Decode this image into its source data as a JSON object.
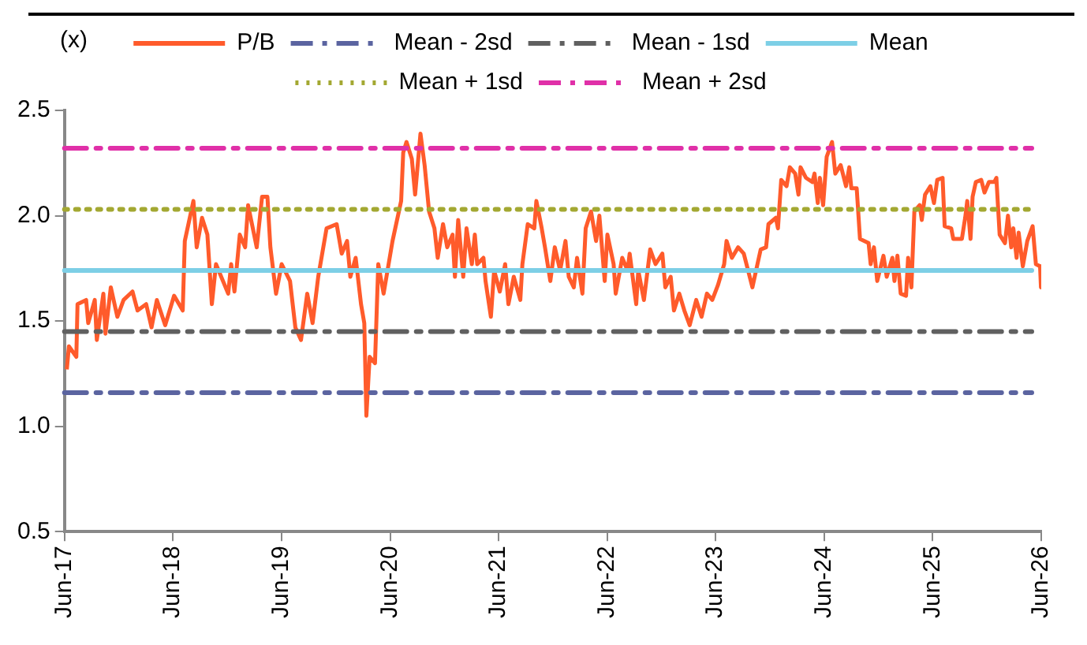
{
  "chart_data": {
    "type": "line",
    "ylabel": "(x)",
    "legend": "top",
    "grid": false,
    "marker": "none",
    "line_style": "solid",
    "xlim": [
      "2017-06-30",
      "2026-06-30"
    ],
    "xticks": [
      {
        "value": "2017-06-30",
        "label": "Jun-17"
      },
      {
        "value": "2018-06-30",
        "label": "Jun-18"
      },
      {
        "value": "2019-06-30",
        "label": "Jun-19"
      },
      {
        "value": "2020-06-30",
        "label": "Jun-20"
      },
      {
        "value": "2021-06-30",
        "label": "Jun-21"
      },
      {
        "value": "2022-06-30",
        "label": "Jun-22"
      },
      {
        "value": "2023-06-30",
        "label": "Jun-23"
      },
      {
        "value": "2024-06-30",
        "label": "Jun-24"
      },
      {
        "value": "2025-06-30",
        "label": "Jun-25"
      },
      {
        "value": "2026-06-30",
        "label": "Jun-26"
      }
    ],
    "ylim": [
      0.5,
      2.5
    ],
    "yticks": [
      0.5,
      {
        "value": 1,
        "label": "1.0"
      },
      1.5,
      {
        "value": 2,
        "label": "2.0"
      },
      2.5
    ],
    "x": [
      "2017-07-08",
      "2017-07-15",
      "2017-08-09",
      "2017-08-13",
      "2017-09-11",
      "2017-09-18",
      "2017-10-10",
      "2017-10-17",
      "2017-11-08",
      "2017-11-15",
      "2017-12-03",
      "2017-12-25",
      "2018-01-15",
      "2018-02-14",
      "2018-03-03",
      "2018-04-01",
      "2018-04-19",
      "2018-05-07",
      "2018-06-04",
      "2018-07-04",
      "2018-08-02",
      "2018-08-09",
      "2018-09-07",
      "2018-09-18",
      "2018-10-06",
      "2018-10-24",
      "2018-11-08",
      "2018-11-22",
      "2019-01-02",
      "2019-01-12",
      "2019-01-23",
      "2019-02-10",
      "2019-02-28",
      "2019-03-10",
      "2019-04-08",
      "2019-04-26",
      "2019-05-14",
      "2019-05-24",
      "2019-06-12",
      "2019-07-01",
      "2019-07-29",
      "2019-08-16",
      "2019-09-04",
      "2019-09-25",
      "2019-10-13",
      "2019-11-01",
      "2019-11-29",
      "2020-01-02",
      "2020-01-19",
      "2020-02-06",
      "2020-02-17",
      "2020-03-06",
      "2020-03-24",
      "2020-04-04",
      "2020-04-11",
      "2020-04-22",
      "2020-05-10",
      "2020-05-21",
      "2020-06-08",
      "2020-07-08",
      "2020-08-06",
      "2020-08-13",
      "2020-08-24",
      "2020-09-11",
      "2020-09-22",
      "2020-10-10",
      "2020-10-24",
      "2020-11-08",
      "2020-11-26",
      "2020-12-07",
      "2020-12-25",
      "2021-01-08",
      "2021-01-26",
      "2021-02-03",
      "2021-02-14",
      "2021-03-03",
      "2021-03-14",
      "2021-04-01",
      "2021-04-11",
      "2021-04-19",
      "2021-05-10",
      "2021-05-17",
      "2021-06-04",
      "2021-06-15",
      "2021-07-04",
      "2021-07-22",
      "2021-08-02",
      "2021-08-20",
      "2021-09-11",
      "2021-09-18",
      "2021-10-06",
      "2021-10-28",
      "2021-11-04",
      "2021-11-22",
      "2021-12-03",
      "2021-12-21",
      "2022-01-05",
      "2022-01-23",
      "2022-02-10",
      "2022-02-21",
      "2022-03-10",
      "2022-03-21",
      "2022-04-08",
      "2022-04-19",
      "2022-05-07",
      "2022-05-24",
      "2022-06-04",
      "2022-06-22",
      "2022-07-01",
      "2022-07-22",
      "2022-07-29",
      "2022-08-20",
      "2022-09-07",
      "2022-09-14",
      "2022-10-06",
      "2022-10-13",
      "2022-11-01",
      "2022-11-22",
      "2022-12-10",
      "2023-01-02",
      "2023-01-12",
      "2023-01-30",
      "2023-02-10",
      "2023-02-28",
      "2023-03-17",
      "2023-04-04",
      "2023-04-26",
      "2023-05-14",
      "2023-06-01",
      "2023-06-19",
      "2023-07-08",
      "2023-07-29",
      "2023-08-06",
      "2023-08-24",
      "2023-09-14",
      "2023-10-03",
      "2023-11-01",
      "2023-11-18",
      "2023-11-29",
      "2023-12-17",
      "2023-12-25",
      "2024-01-19",
      "2024-01-26",
      "2024-02-06",
      "2024-02-24",
      "2024-03-06",
      "2024-03-24",
      "2024-04-04",
      "2024-04-11",
      "2024-04-29",
      "2024-05-21",
      "2024-05-28",
      "2024-06-08",
      "2024-06-15",
      "2024-06-26",
      "2024-07-08",
      "2024-07-26",
      "2024-08-06",
      "2024-08-24",
      "2024-09-11",
      "2024-09-22",
      "2024-09-29",
      "2024-10-17",
      "2024-10-28",
      "2024-11-26",
      "2024-12-03",
      "2024-12-14",
      "2024-12-25",
      "2025-01-15",
      "2025-01-26",
      "2025-02-14",
      "2025-02-21",
      "2025-03-03",
      "2025-03-14",
      "2025-04-01",
      "2025-04-08",
      "2025-04-19",
      "2025-04-29",
      "2025-05-17",
      "2025-05-24",
      "2025-06-04",
      "2025-06-22",
      "2025-07-04",
      "2025-07-15",
      "2025-08-02",
      "2025-08-09",
      "2025-08-31",
      "2025-09-07",
      "2025-10-06",
      "2025-10-17",
      "2025-10-24",
      "2025-11-04",
      "2025-11-11",
      "2025-11-22",
      "2025-12-10",
      "2025-12-21",
      "2026-01-05",
      "2026-01-23",
      "2026-01-30",
      "2026-02-10",
      "2026-02-28",
      "2026-03-10",
      "2026-03-21",
      "2026-03-28",
      "2026-04-08",
      "2026-04-15",
      "2026-04-29",
      "2026-05-14",
      "2026-06-01",
      "2026-06-12",
      "2026-06-26",
      "2026-06-29"
    ],
    "series": [
      {
        "name": "P/B",
        "color": "#ff5b2b",
        "values": [
          1.27,
          1.38,
          1.33,
          1.58,
          1.6,
          1.49,
          1.6,
          1.41,
          1.63,
          1.44,
          1.66,
          1.52,
          1.6,
          1.64,
          1.55,
          1.58,
          1.47,
          1.6,
          1.48,
          1.62,
          1.55,
          1.88,
          2.07,
          1.85,
          1.99,
          1.91,
          1.58,
          1.77,
          1.63,
          1.77,
          1.64,
          1.91,
          1.85,
          2.05,
          1.85,
          2.09,
          2.09,
          1.85,
          1.63,
          1.77,
          1.69,
          1.47,
          1.41,
          1.63,
          1.49,
          1.71,
          1.94,
          1.96,
          1.82,
          1.88,
          1.71,
          1.8,
          1.58,
          1.49,
          1.05,
          1.33,
          1.3,
          1.77,
          1.63,
          1.88,
          2.07,
          2.3,
          2.35,
          2.27,
          2.1,
          2.39,
          2.24,
          2.02,
          1.94,
          1.8,
          1.96,
          1.85,
          1.91,
          1.71,
          1.98,
          1.71,
          1.94,
          1.77,
          1.91,
          1.77,
          1.8,
          1.69,
          1.52,
          1.74,
          1.64,
          1.77,
          1.58,
          1.71,
          1.6,
          1.77,
          1.96,
          1.94,
          2.07,
          1.94,
          1.85,
          1.69,
          1.85,
          1.74,
          1.88,
          1.71,
          1.66,
          1.8,
          1.63,
          1.94,
          2.02,
          1.88,
          2.0,
          1.69,
          1.91,
          1.77,
          1.63,
          1.8,
          1.74,
          1.82,
          1.58,
          1.74,
          1.6,
          1.84,
          1.77,
          1.82,
          1.66,
          1.71,
          1.55,
          1.63,
          1.55,
          1.48,
          1.6,
          1.52,
          1.63,
          1.6,
          1.67,
          1.77,
          1.88,
          1.8,
          1.85,
          1.82,
          1.66,
          1.77,
          1.84,
          1.85,
          1.96,
          1.99,
          1.94,
          2.17,
          2.14,
          2.23,
          2.2,
          2.1,
          2.23,
          2.18,
          2.16,
          2.2,
          2.06,
          2.18,
          2.05,
          2.28,
          2.35,
          2.2,
          2.24,
          2.14,
          2.23,
          2.13,
          2.13,
          1.89,
          1.87,
          1.77,
          1.85,
          1.69,
          1.81,
          1.71,
          1.8,
          1.69,
          1.81,
          1.63,
          1.62,
          1.8,
          1.66,
          2.02,
          2.05,
          1.98,
          2.1,
          2.14,
          2.06,
          2.17,
          2.18,
          1.95,
          1.94,
          1.89,
          1.89,
          1.99,
          2.07,
          1.89,
          2.09,
          2.16,
          2.17,
          2.11,
          2.16,
          2.16,
          2.18,
          1.91,
          1.87,
          2.0,
          1.85,
          1.94,
          1.8,
          1.92,
          1.76,
          1.88,
          1.95,
          1.77,
          1.76,
          1.66
        ]
      }
    ],
    "ref_lines": [
      {
        "axis": "y",
        "value": 1.16,
        "label": "Mean - 2sd",
        "color": "#5b64a0",
        "line_style": "dashed"
      },
      {
        "axis": "y",
        "value": 1.45,
        "label": "Mean - 1sd",
        "color": "#606060",
        "line_style": "dashed"
      },
      {
        "axis": "y",
        "value": 1.74,
        "label": "Mean",
        "color": "#7dcfe6",
        "line_style": "solid"
      },
      {
        "axis": "y",
        "value": 2.03,
        "label": "Mean + 1sd",
        "color": "#a3a832",
        "line_style": "dotted"
      },
      {
        "axis": "y",
        "value": 2.32,
        "label": "Mean + 2sd",
        "color": "#e030a8",
        "line_style": "dashed"
      }
    ]
  }
}
